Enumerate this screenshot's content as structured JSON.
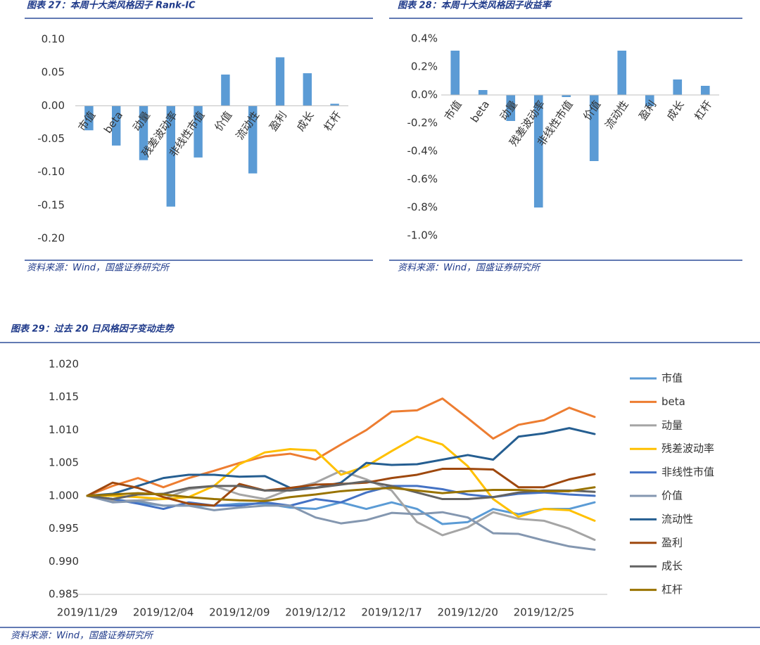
{
  "chart_data": [
    {
      "type": "bar",
      "title": "图表 27：本周十大类风格因子 Rank-IC",
      "source": "资料来源：Wind，国盛证券研究所",
      "categories": [
        "市值",
        "beta",
        "动量",
        "残差波动率",
        "非线性市值",
        "价值",
        "流动性",
        "盈利",
        "成长",
        "杠杆"
      ],
      "values": [
        -0.037,
        -0.06,
        -0.082,
        -0.152,
        -0.078,
        0.047,
        -0.102,
        0.073,
        0.049,
        0.003
      ],
      "color": "#5b9bd5",
      "ylim": [
        -0.2,
        0.1
      ],
      "yticks": [
        {
          "value": 0.1,
          "label": "0.10"
        },
        {
          "value": 0.05,
          "label": "0.05"
        },
        {
          "value": 0,
          "label": "0.00"
        },
        {
          "value": -0.05,
          "label": "-0.05"
        },
        {
          "value": -0.1,
          "label": "-0.10"
        },
        {
          "value": -0.15,
          "label": "-0.15"
        },
        {
          "value": -0.2,
          "label": "-0.20"
        }
      ]
    },
    {
      "type": "bar",
      "title": "图表 28：本周十大类风格因子收益率",
      "source": "资料来源：Wind，国盛证券研究所",
      "categories": [
        "市值",
        "beta",
        "动量",
        "残差波动率",
        "非线性市值",
        "价值",
        "流动性",
        "盈利",
        "成长",
        "杠杆"
      ],
      "values": [
        0.315,
        0.035,
        -0.185,
        -0.8,
        -0.015,
        -0.47,
        0.315,
        -0.08,
        0.11,
        0.065
      ],
      "color": "#5b9bd5",
      "ylim": [
        -1.0,
        0.4
      ],
      "yticks": [
        {
          "value": 0.4,
          "label": "0.4%"
        },
        {
          "value": 0.2,
          "label": "0.2%"
        },
        {
          "value": 0,
          "label": "0.0%"
        },
        {
          "value": -0.2,
          "label": "-0.2%"
        },
        {
          "value": -0.4,
          "label": "-0.4%"
        },
        {
          "value": -0.6,
          "label": "-0.6%"
        },
        {
          "value": -0.8,
          "label": "-0.8%"
        },
        {
          "value": -1.0,
          "label": "-1.0%"
        }
      ]
    },
    {
      "type": "line",
      "title": "图表 29：过去 20 日风格因子变动走势",
      "source": "资料来源：Wind，国盛证券研究所",
      "categories": [
        "2019/11/29",
        null,
        null,
        "2019/12/04",
        null,
        null,
        "2019/12/09",
        null,
        null,
        "2019/12/12",
        null,
        null,
        "2019/12/17",
        null,
        null,
        "2019/12/20",
        null,
        null,
        "2019/12/25",
        null,
        null
      ],
      "ylim": [
        0.985,
        1.02
      ],
      "yticks": [
        {
          "value": 1.02,
          "label": "1.020"
        },
        {
          "value": 1.015,
          "label": "1.015"
        },
        {
          "value": 1.01,
          "label": "1.010"
        },
        {
          "value": 1.005,
          "label": "1.005"
        },
        {
          "value": 1.0,
          "label": "1.000"
        },
        {
          "value": 0.995,
          "label": "0.995"
        },
        {
          "value": 0.99,
          "label": "0.990"
        },
        {
          "value": 0.985,
          "label": "0.985"
        }
      ],
      "legend": "right",
      "series": [
        {
          "name": "市值",
          "color": "#5b9bd5",
          "values": [
            1.0,
            0.9995,
            0.999,
            0.9985,
            0.9985,
            0.9985,
            0.9988,
            0.9988,
            0.9982,
            0.998,
            0.999,
            0.998,
            0.999,
            0.998,
            0.9957,
            0.996,
            0.998,
            0.9972,
            0.998,
            0.998,
            0.999
          ]
        },
        {
          "name": "beta",
          "color": "#ed7d31",
          "values": [
            1.0,
            1.0015,
            1.0027,
            1.0013,
            1.0027,
            1.0038,
            1.005,
            1.006,
            1.0064,
            1.0055,
            1.0078,
            1.01,
            1.0128,
            1.013,
            1.0148,
            1.0118,
            1.0087,
            1.0108,
            1.0115,
            1.0134,
            1.012
          ]
        },
        {
          "name": "动量",
          "color": "#a5a5a5",
          "values": [
            1.0,
            0.9992,
            0.9993,
            0.9995,
            1.001,
            1.0015,
            1.0002,
            0.9995,
            1.001,
            1.002,
            1.0038,
            1.0025,
            1.0008,
            0.996,
            0.994,
            0.9952,
            0.9975,
            0.9965,
            0.9962,
            0.995,
            0.9933
          ]
        },
        {
          "name": "残差波动率",
          "color": "#ffc000",
          "values": [
            1.0,
            1.0,
            0.9998,
            0.9995,
            0.9998,
            1.0015,
            1.0048,
            1.0066,
            1.0071,
            1.0069,
            1.0032,
            1.0045,
            1.0068,
            1.009,
            1.0078,
            1.0045,
            0.9995,
            0.9968,
            0.998,
            0.9978,
            0.9962
          ]
        },
        {
          "name": "非线性市值",
          "color": "#4472c4",
          "values": [
            1.0,
            0.9995,
            0.9988,
            0.998,
            0.999,
            0.9985,
            0.9985,
            0.999,
            0.9985,
            0.9995,
            0.999,
            1.0005,
            1.0015,
            1.0015,
            1.001,
            1.0002,
            0.9998,
            1.0003,
            1.0005,
            1.0002,
            1.0
          ]
        },
        {
          "name": "价值",
          "color": "#8497b0",
          "values": [
            1.0,
            0.999,
            0.9992,
            0.9985,
            0.9985,
            0.9978,
            0.9982,
            0.9985,
            0.9985,
            0.9967,
            0.9958,
            0.9963,
            0.9974,
            0.9972,
            0.9975,
            0.9967,
            0.9943,
            0.9942,
            0.9932,
            0.9923,
            0.9918
          ]
        },
        {
          "name": "流动性",
          "color": "#255e91",
          "values": [
            1.0,
            1.0003,
            1.0015,
            1.0027,
            1.0032,
            1.0032,
            1.0029,
            1.003,
            1.0012,
            1.0012,
            1.002,
            1.005,
            1.0047,
            1.0048,
            1.0055,
            1.0062,
            1.0055,
            1.009,
            1.0095,
            1.0103,
            1.0094
          ]
        },
        {
          "name": "盈利",
          "color": "#9e480e",
          "values": [
            1.0,
            1.002,
            1.0012,
            0.9998,
            0.9988,
            0.9985,
            1.0018,
            1.0008,
            1.0012,
            1.0017,
            1.0018,
            1.002,
            1.0027,
            1.0032,
            1.0041,
            1.0041,
            1.004,
            1.0013,
            1.0013,
            1.0025,
            1.0033
          ]
        },
        {
          "name": "成长",
          "color": "#636363",
          "values": [
            1.0,
            0.9995,
            1.0002,
            1.0003,
            1.0012,
            1.0015,
            1.0015,
            1.0008,
            1.0008,
            1.0012,
            1.0017,
            1.0022,
            1.0015,
            1.0005,
            0.9995,
            0.9995,
            0.9998,
            1.0005,
            1.0008,
            1.0008,
            1.0006
          ]
        },
        {
          "name": "杠杆",
          "color": "#997300",
          "values": [
            1.0,
            1.0002,
            1.0004,
            1.0002,
            0.9998,
            0.9995,
            0.9993,
            0.9992,
            0.9998,
            1.0002,
            1.0007,
            1.001,
            1.0012,
            1.0008,
            1.0004,
            1.0007,
            1.0009,
            1.0009,
            1.0007,
            1.0007,
            1.0013
          ]
        }
      ]
    }
  ]
}
